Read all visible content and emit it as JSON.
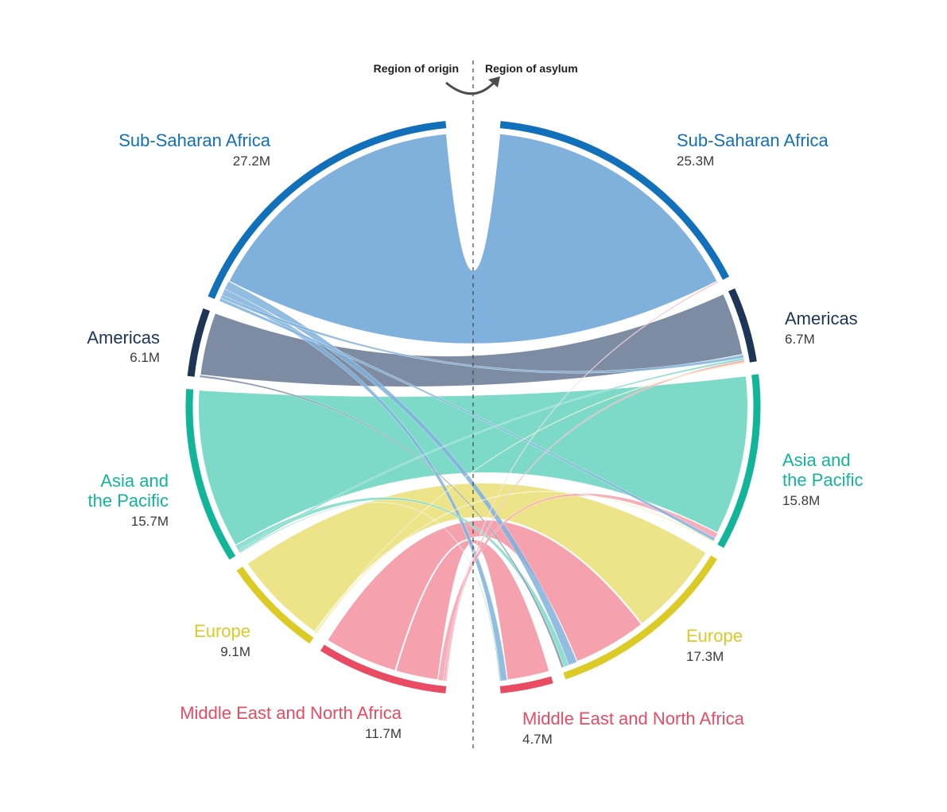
{
  "direction": {
    "origin_label": "Region of origin",
    "asylum_label": "Region of asylum"
  },
  "regions": [
    {
      "key": "ssa",
      "name": "Sub-Saharan Africa",
      "color": "#1170b9",
      "ribbon_color": "#7fb1dc"
    },
    {
      "key": "amer",
      "name": "Americas",
      "color": "#1d3557",
      "ribbon_color": "#7e8ca3"
    },
    {
      "key": "asia",
      "name": "Asia and the Pacific",
      "color": "#12b59a",
      "ribbon_color": "#7dd9c8"
    },
    {
      "key": "eur",
      "name": "Europe",
      "color": "#dccb27",
      "ribbon_color": "#ede48a"
    },
    {
      "key": "mena",
      "name": "Middle East and North Africa",
      "color": "#e94b63",
      "ribbon_color": "#f5a1ae"
    }
  ],
  "origin_side": {
    "ssa": {
      "line1": "Sub-Saharan Africa",
      "line2": "",
      "value": "27.2M"
    },
    "amer": {
      "line1": "Americas",
      "line2": "",
      "value": "6.1M"
    },
    "asia": {
      "line1": "Asia and",
      "line2": "the Pacific",
      "value": "15.7M"
    },
    "eur": {
      "line1": "Europe",
      "line2": "",
      "value": "9.1M"
    },
    "mena": {
      "line1": "Middle East and North Africa",
      "line2": "",
      "value": "11.7M"
    }
  },
  "asylum_side": {
    "ssa": {
      "line1": "Sub-Saharan Africa",
      "line2": "",
      "value": "25.3M"
    },
    "amer": {
      "line1": "Americas",
      "line2": "",
      "value": "6.7M"
    },
    "asia": {
      "line1": "Asia and",
      "line2": "the Pacific",
      "value": "15.8M"
    },
    "eur": {
      "line1": "Europe",
      "line2": "",
      "value": "17.3M"
    },
    "mena": {
      "line1": "Middle East and North Africa",
      "line2": "",
      "value": "4.7M"
    }
  },
  "chart_data": {
    "type": "chord",
    "unit": "M",
    "origin_totals": {
      "Sub-Saharan Africa": 27.2,
      "Americas": 6.1,
      "Asia and the Pacific": 15.7,
      "Europe": 9.1,
      "Middle East and North Africa": 11.7
    },
    "asylum_totals": {
      "Sub-Saharan Africa": 25.3,
      "Americas": 6.7,
      "Asia and the Pacific": 15.8,
      "Europe": 17.3,
      "Middle East and North Africa": 4.7
    },
    "flows": [
      {
        "from": "Sub-Saharan Africa",
        "to": "Sub-Saharan Africa",
        "value": 25.2
      },
      {
        "from": "Sub-Saharan Africa",
        "to": "Americas",
        "value": 0.3
      },
      {
        "from": "Sub-Saharan Africa",
        "to": "Asia and the Pacific",
        "value": 0.3
      },
      {
        "from": "Sub-Saharan Africa",
        "to": "Europe",
        "value": 0.8
      },
      {
        "from": "Sub-Saharan Africa",
        "to": "Middle East and North Africa",
        "value": 0.6
      },
      {
        "from": "Americas",
        "to": "Americas",
        "value": 5.9
      },
      {
        "from": "Americas",
        "to": "Europe",
        "value": 0.2
      },
      {
        "from": "Asia and the Pacific",
        "to": "Americas",
        "value": 0.2
      },
      {
        "from": "Asia and the Pacific",
        "to": "Asia and the Pacific",
        "value": 14.9
      },
      {
        "from": "Asia and the Pacific",
        "to": "Europe",
        "value": 0.5
      },
      {
        "from": "Asia and the Pacific",
        "to": "Middle East and North Africa",
        "value": 0.1
      },
      {
        "from": "Europe",
        "to": "Americas",
        "value": 0.1
      },
      {
        "from": "Europe",
        "to": "Asia and the Pacific",
        "value": 0.1
      },
      {
        "from": "Europe",
        "to": "Europe",
        "value": 8.9
      },
      {
        "from": "Middle East and North Africa",
        "to": "Sub-Saharan Africa",
        "value": 0.1
      },
      {
        "from": "Middle East and North Africa",
        "to": "Americas",
        "value": 0.2
      },
      {
        "from": "Middle East and North Africa",
        "to": "Asia and the Pacific",
        "value": 0.5
      },
      {
        "from": "Middle East and North Africa",
        "to": "Europe",
        "value": 6.9
      },
      {
        "from": "Middle East and North Africa",
        "to": "Middle East and North Africa",
        "value": 4.0
      }
    ]
  }
}
